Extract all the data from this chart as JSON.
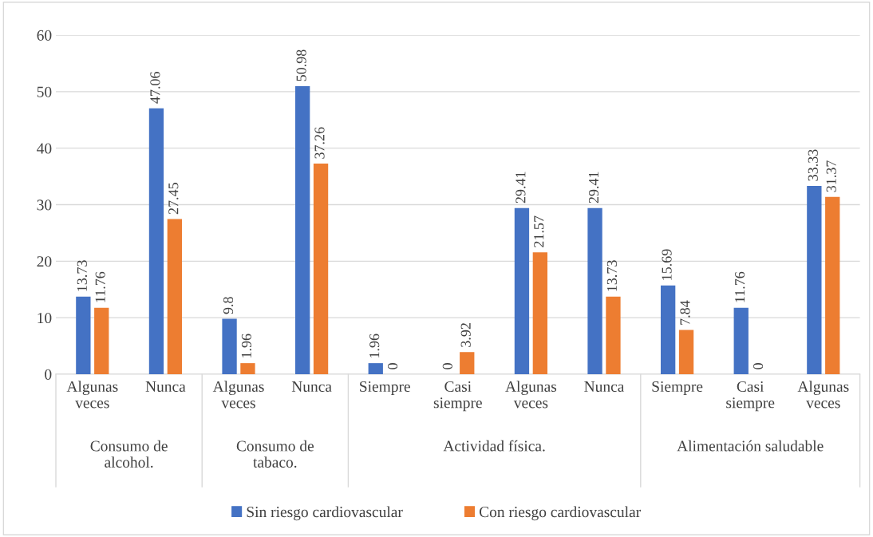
{
  "chart_data": {
    "type": "bar",
    "categories": [
      "Algunas veces",
      "Nunca",
      "Algunas veces",
      "Nunca",
      "Siempre",
      "Casi siempre",
      "Algunas veces",
      "Nunca",
      "Siempre",
      "Casi siempre",
      "Algunas veces"
    ],
    "series": [
      {
        "name": "Sin riesgo cardiovascular",
        "color": "#4472c4",
        "values": [
          13.73,
          47.06,
          9.8,
          50.98,
          1.96,
          0,
          29.41,
          29.41,
          15.69,
          11.76,
          33.33
        ]
      },
      {
        "name": "Con riesgo cardiovascular",
        "color": "#ed7d31",
        "values": [
          11.76,
          27.45,
          1.96,
          37.26,
          0,
          3.92,
          21.57,
          13.73,
          7.84,
          0,
          31.37
        ]
      }
    ],
    "annotations": [
      "Consumo de alcohol.",
      "Consumo de tabaco.",
      "Actividad física.",
      "Alimentación saludable"
    ],
    "ylim": [
      0,
      60
    ],
    "yticks": [
      0,
      10,
      20,
      30,
      40,
      50,
      60
    ],
    "grid": "y",
    "legend": "bottom",
    "data_labels": true
  }
}
